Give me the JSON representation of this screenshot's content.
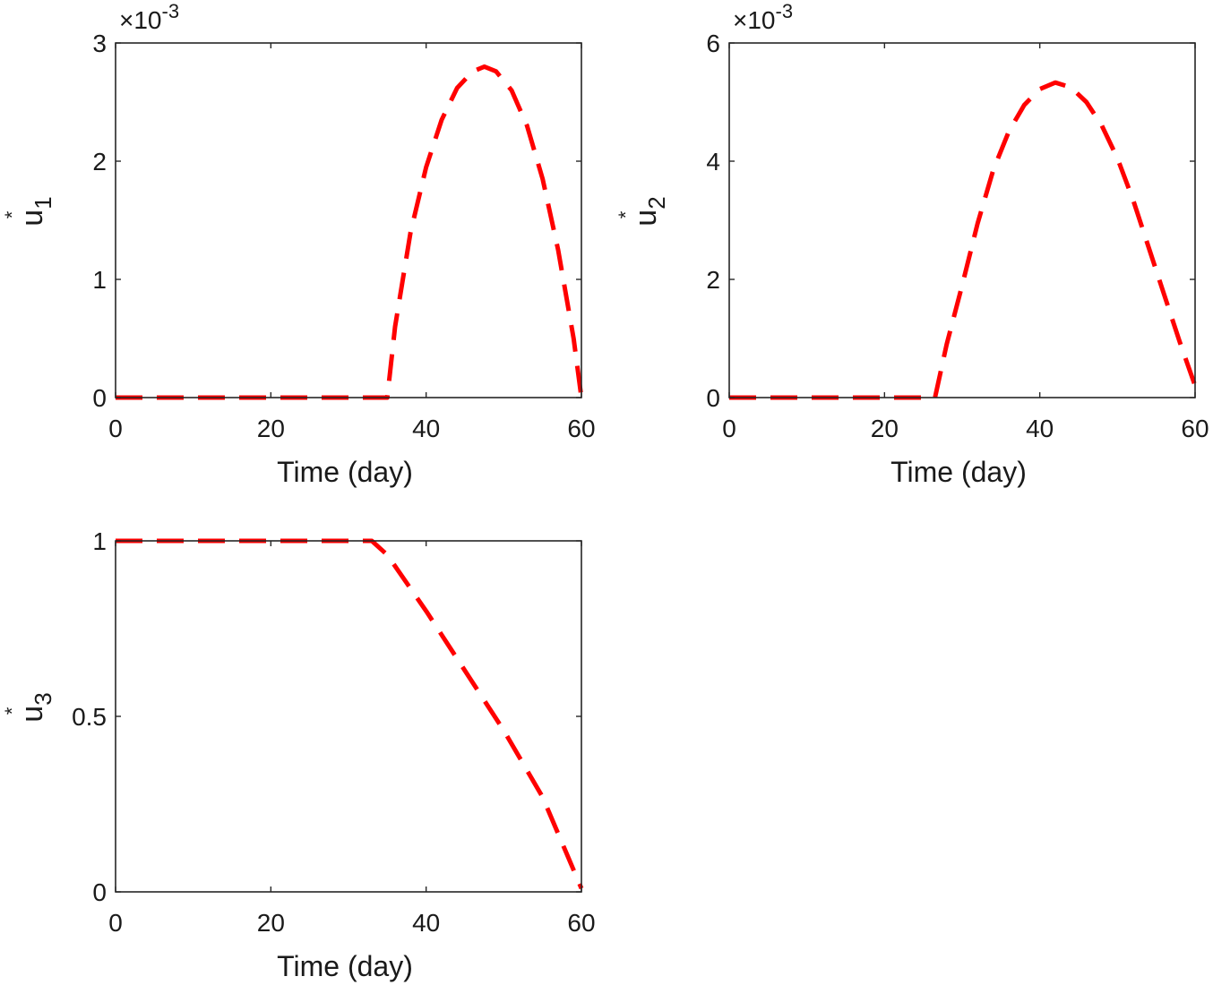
{
  "chart_data": [
    {
      "type": "line",
      "xlabel": "Time (day)",
      "ylabel": {
        "base": "u",
        "sub": "1",
        "sup": "*"
      },
      "exponent": {
        "prefix": "×10",
        "power": "-3"
      },
      "xlim": [
        0,
        60
      ],
      "ylim": [
        0,
        3
      ],
      "xticks": [
        "0",
        "20",
        "40",
        "60"
      ],
      "yticks": [
        "0",
        "1",
        "2",
        "3"
      ],
      "xtick_values": [
        0,
        20,
        40,
        60
      ],
      "ytick_values": [
        0,
        1,
        2,
        3
      ],
      "grid": false,
      "series": [
        {
          "color": "#ff0000",
          "style": "dashed",
          "x": [
            0,
            10,
            20,
            30,
            35,
            36,
            38,
            40,
            42,
            44,
            46,
            47.5,
            49,
            51,
            53,
            55,
            57,
            59,
            60
          ],
          "y": [
            0,
            0,
            0,
            0,
            0,
            0.6,
            1.4,
            1.95,
            2.35,
            2.62,
            2.76,
            2.8,
            2.76,
            2.6,
            2.3,
            1.85,
            1.25,
            0.5,
            0
          ]
        }
      ]
    },
    {
      "type": "line",
      "xlabel": "Time (day)",
      "ylabel": {
        "base": "u",
        "sub": "2",
        "sup": "*"
      },
      "exponent": {
        "prefix": "×10",
        "power": "-3"
      },
      "xlim": [
        0,
        60
      ],
      "ylim": [
        0,
        6
      ],
      "xticks": [
        "0",
        "20",
        "40",
        "60"
      ],
      "yticks": [
        "0",
        "2",
        "4",
        "6"
      ],
      "xtick_values": [
        0,
        20,
        40,
        60
      ],
      "ytick_values": [
        0,
        2,
        4,
        6
      ],
      "grid": false,
      "series": [
        {
          "color": "#ff0000",
          "style": "dashed",
          "x": [
            0,
            10,
            20,
            26,
            26.5,
            28,
            30,
            32,
            34,
            36,
            38,
            40,
            42,
            44,
            46,
            48,
            50,
            52,
            54,
            56,
            58,
            60
          ],
          "y": [
            0,
            0,
            0,
            0,
            0,
            0.9,
            1.9,
            2.95,
            3.85,
            4.5,
            4.95,
            5.22,
            5.33,
            5.25,
            5.0,
            4.6,
            4.05,
            3.35,
            2.55,
            1.75,
            0.95,
            0.2
          ]
        }
      ]
    },
    {
      "type": "line",
      "xlabel": "Time (day)",
      "ylabel": {
        "base": "u",
        "sub": "3",
        "sup": "*"
      },
      "exponent": null,
      "xlim": [
        0,
        60
      ],
      "ylim": [
        0,
        1
      ],
      "xticks": [
        "0",
        "20",
        "40",
        "60"
      ],
      "yticks": [
        "0",
        "0.5",
        "1"
      ],
      "xtick_values": [
        0,
        20,
        40,
        60
      ],
      "ytick_values": [
        0,
        0.5,
        1
      ],
      "grid": false,
      "series": [
        {
          "color": "#ff0000",
          "style": "dashed",
          "x": [
            0,
            10,
            20,
            30,
            33,
            35,
            40,
            45,
            50,
            55,
            60
          ],
          "y": [
            1,
            1,
            1,
            1,
            1,
            0.96,
            0.8,
            0.63,
            0.46,
            0.27,
            0.01
          ]
        }
      ]
    }
  ]
}
